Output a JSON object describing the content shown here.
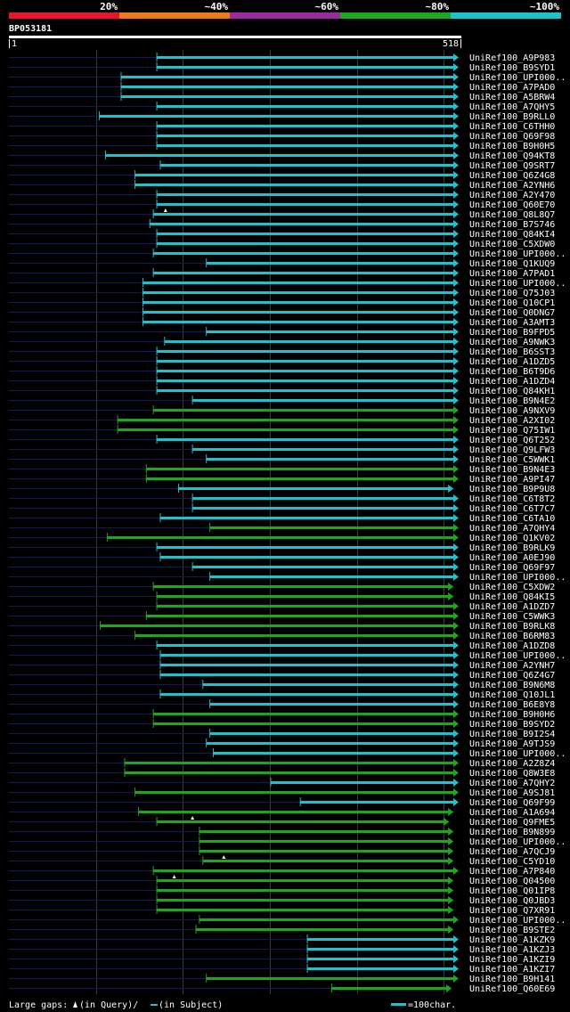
{
  "header": {
    "title": "BP053181",
    "ruler_start": "1",
    "ruler_end": "518",
    "query_length": 518
  },
  "identity_legend": [
    {
      "label": "20%",
      "color": "#e8162c"
    },
    {
      "label": "~40%",
      "color": "#ee7a1e"
    },
    {
      "label": "~60%",
      "color": "#9b2aa0"
    },
    {
      "label": "~80%",
      "color": "#1ea61e"
    },
    {
      "label": "~100%",
      "color": "#1ec2cc"
    }
  ],
  "colors": {
    "query_line": "#12185c",
    "gap_marker": "#ffffa0",
    "grid": "#3a3a3a"
  },
  "hits": [
    {
      "name": "UniRef100_A9P983",
      "start": 171,
      "end": 518,
      "color": "#1ec2cc"
    },
    {
      "name": "UniRef100_B9SYD1",
      "start": 171,
      "end": 518,
      "color": "#1ec2cc"
    },
    {
      "name": "UniRef100_UPI000..",
      "start": 130,
      "end": 518,
      "color": "#1ec2cc"
    },
    {
      "name": "UniRef100_A7PAD0",
      "start": 130,
      "end": 518,
      "color": "#1ec2cc"
    },
    {
      "name": "UniRef100_A5BRW4",
      "start": 130,
      "end": 518,
      "color": "#1ec2cc"
    },
    {
      "name": "UniRef100_A7QHY5",
      "start": 171,
      "end": 518,
      "color": "#1ec2cc"
    },
    {
      "name": "UniRef100_B9RLL0",
      "start": 105,
      "end": 518,
      "color": "#1ec2cc"
    },
    {
      "name": "UniRef100_C6THH0",
      "start": 171,
      "end": 518,
      "color": "#1ec2cc"
    },
    {
      "name": "UniRef100_Q69F98",
      "start": 171,
      "end": 518,
      "color": "#1ec2cc"
    },
    {
      "name": "UniRef100_B9H0H5",
      "start": 171,
      "end": 518,
      "color": "#1ec2cc"
    },
    {
      "name": "UniRef100_Q94KT8",
      "start": 112,
      "end": 518,
      "color": "#1ec2cc"
    },
    {
      "name": "UniRef100_Q9SRT7",
      "start": 175,
      "end": 518,
      "color": "#1ec2cc"
    },
    {
      "name": "UniRef100_Q6Z4G8",
      "start": 146,
      "end": 518,
      "color": "#1ec2cc"
    },
    {
      "name": "UniRef100_A2YNH6",
      "start": 146,
      "end": 518,
      "color": "#1ec2cc"
    },
    {
      "name": "UniRef100_A2Y470",
      "start": 171,
      "end": 518,
      "color": "#1ec2cc"
    },
    {
      "name": "UniRef100_Q60E70",
      "start": 171,
      "end": 518,
      "color": "#1ec2cc"
    },
    {
      "name": "UniRef100_Q8L8Q7",
      "start": 167,
      "end": 518,
      "color": "#1ec2cc",
      "gap": "query",
      "gap_at": 181
    },
    {
      "name": "UniRef100_B7S746",
      "start": 163,
      "end": 518,
      "color": "#1ec2cc"
    },
    {
      "name": "UniRef100_Q84KI4",
      "start": 171,
      "end": 518,
      "color": "#1ec2cc"
    },
    {
      "name": "UniRef100_C5XDW0",
      "start": 171,
      "end": 518,
      "color": "#1ec2cc"
    },
    {
      "name": "UniRef100_UPI000..",
      "start": 167,
      "end": 518,
      "color": "#1ec2cc"
    },
    {
      "name": "UniRef100_Q1KUQ9",
      "start": 228,
      "end": 518,
      "color": "#1ec2cc"
    },
    {
      "name": "UniRef100_A7PAD1",
      "start": 167,
      "end": 518,
      "color": "#1ec2cc"
    },
    {
      "name": "UniRef100_UPI000..",
      "start": 155,
      "end": 518,
      "color": "#1ec2cc"
    },
    {
      "name": "UniRef100_Q75J03",
      "start": 155,
      "end": 518,
      "color": "#1ec2cc"
    },
    {
      "name": "UniRef100_Q10CP1",
      "start": 155,
      "end": 518,
      "color": "#1ec2cc"
    },
    {
      "name": "UniRef100_Q0DNG7",
      "start": 155,
      "end": 518,
      "color": "#1ec2cc"
    },
    {
      "name": "UniRef100_A3AMT3",
      "start": 155,
      "end": 518,
      "color": "#1ec2cc"
    },
    {
      "name": "UniRef100_B9FPD5",
      "start": 228,
      "end": 518,
      "color": "#1ec2cc"
    },
    {
      "name": "UniRef100_A9NWK3",
      "start": 180,
      "end": 518,
      "color": "#1ec2cc"
    },
    {
      "name": "UniRef100_B6SST3",
      "start": 171,
      "end": 518,
      "color": "#1ec2cc"
    },
    {
      "name": "UniRef100_A1DZD5",
      "start": 171,
      "end": 518,
      "color": "#1ec2cc"
    },
    {
      "name": "UniRef100_B6T9D6",
      "start": 171,
      "end": 518,
      "color": "#1ec2cc"
    },
    {
      "name": "UniRef100_A1DZD4",
      "start": 171,
      "end": 518,
      "color": "#1ec2cc"
    },
    {
      "name": "UniRef100_Q84KH1",
      "start": 171,
      "end": 518,
      "color": "#1ec2cc"
    },
    {
      "name": "UniRef100_B9N4E2",
      "start": 212,
      "end": 518,
      "color": "#1ec2cc"
    },
    {
      "name": "UniRef100_A9NXV9",
      "start": 167,
      "end": 518,
      "color": "#1ea61e"
    },
    {
      "name": "UniRef100_A2XI02",
      "start": 126,
      "end": 518,
      "color": "#1ea61e"
    },
    {
      "name": "UniRef100_Q75IW1",
      "start": 126,
      "end": 518,
      "color": "#1ea61e"
    },
    {
      "name": "UniRef100_Q6T252",
      "start": 171,
      "end": 518,
      "color": "#1ec2cc"
    },
    {
      "name": "UniRef100_Q9LFW3",
      "start": 212,
      "end": 518,
      "color": "#1ec2cc"
    },
    {
      "name": "UniRef100_C5WWK1",
      "start": 228,
      "end": 518,
      "color": "#1ec2cc"
    },
    {
      "name": "UniRef100_B9N4E3",
      "start": 159,
      "end": 518,
      "color": "#1ea61e"
    },
    {
      "name": "UniRef100_A9PI47",
      "start": 159,
      "end": 518,
      "color": "#1ea61e"
    },
    {
      "name": "UniRef100_B9P9U8",
      "start": 196,
      "end": 512,
      "color": "#1ec2cc"
    },
    {
      "name": "UniRef100_C6T8T2",
      "start": 212,
      "end": 518,
      "color": "#1ec2cc"
    },
    {
      "name": "UniRef100_C6T7C7",
      "start": 212,
      "end": 518,
      "color": "#1ec2cc"
    },
    {
      "name": "UniRef100_C6TA10",
      "start": 175,
      "end": 518,
      "color": "#1ec2cc"
    },
    {
      "name": "UniRef100_A7QHY4",
      "start": 232,
      "end": 518,
      "color": "#1ea61e"
    },
    {
      "name": "UniRef100_Q1KV02",
      "start": 114,
      "end": 518,
      "color": "#1ea61e"
    },
    {
      "name": "UniRef100_B9RLK9",
      "start": 171,
      "end": 518,
      "color": "#1ec2cc"
    },
    {
      "name": "UniRef100_A0EJ90",
      "start": 175,
      "end": 518,
      "color": "#1ec2cc"
    },
    {
      "name": "UniRef100_Q69F97",
      "start": 212,
      "end": 518,
      "color": "#1ec2cc"
    },
    {
      "name": "UniRef100_UPI000..",
      "start": 232,
      "end": 518,
      "color": "#1ec2cc"
    },
    {
      "name": "UniRef100_C5XDW2",
      "start": 167,
      "end": 512,
      "color": "#1ea61e"
    },
    {
      "name": "UniRef100_Q84KI5",
      "start": 171,
      "end": 512,
      "color": "#1ea61e"
    },
    {
      "name": "UniRef100_A1DZD7",
      "start": 171,
      "end": 518,
      "color": "#1ea61e"
    },
    {
      "name": "UniRef100_C5WWK3",
      "start": 159,
      "end": 518,
      "color": "#1ea61e"
    },
    {
      "name": "UniRef100_B9RLK8",
      "start": 106,
      "end": 518,
      "color": "#1ea61e"
    },
    {
      "name": "UniRef100_B6RM83",
      "start": 146,
      "end": 518,
      "color": "#1ea61e"
    },
    {
      "name": "UniRef100_A1DZD8",
      "start": 171,
      "end": 518,
      "color": "#1ec2cc"
    },
    {
      "name": "UniRef100_UPI000..",
      "start": 175,
      "end": 518,
      "color": "#1ec2cc"
    },
    {
      "name": "UniRef100_A2YNH7",
      "start": 175,
      "end": 518,
      "color": "#1ec2cc"
    },
    {
      "name": "UniRef100_Q6Z4G7",
      "start": 175,
      "end": 518,
      "color": "#1ec2cc"
    },
    {
      "name": "UniRef100_B9N6M8",
      "start": 224,
      "end": 518,
      "color": "#1ec2cc"
    },
    {
      "name": "UniRef100_Q10JL1",
      "start": 175,
      "end": 518,
      "color": "#1ec2cc"
    },
    {
      "name": "UniRef100_B6E8Y8",
      "start": 232,
      "end": 518,
      "color": "#1ec2cc"
    },
    {
      "name": "UniRef100_B9H0H6",
      "start": 167,
      "end": 518,
      "color": "#1ea61e"
    },
    {
      "name": "UniRef100_B9SYD2",
      "start": 167,
      "end": 518,
      "color": "#1ea61e"
    },
    {
      "name": "UniRef100_B9I2S4",
      "start": 232,
      "end": 518,
      "color": "#1ec2cc"
    },
    {
      "name": "UniRef100_A9TJS9",
      "start": 228,
      "end": 518,
      "color": "#1ec2cc"
    },
    {
      "name": "UniRef100_UPI000..",
      "start": 236,
      "end": 518,
      "color": "#1ec2cc"
    },
    {
      "name": "UniRef100_A2Z8Z4",
      "start": 134,
      "end": 518,
      "color": "#1ea61e"
    },
    {
      "name": "UniRef100_Q8W3E8",
      "start": 134,
      "end": 518,
      "color": "#1ea61e"
    },
    {
      "name": "UniRef100_A7QHY2",
      "start": 302,
      "end": 518,
      "color": "#1ec2cc"
    },
    {
      "name": "UniRef100_A9SJ81",
      "start": 146,
      "end": 518,
      "color": "#1ea61e"
    },
    {
      "name": "UniRef100_Q69F99",
      "start": 336,
      "end": 518,
      "color": "#1ec2cc"
    },
    {
      "name": "UniRef100_A1A694",
      "start": 150,
      "end": 512,
      "color": "#1ea61e"
    },
    {
      "name": "UniRef100_Q9FME5",
      "start": 171,
      "end": 507,
      "color": "#1ea61e",
      "gap": "query",
      "gap_at": 212
    },
    {
      "name": "UniRef100_B9N899",
      "start": 220,
      "end": 512,
      "color": "#1ea61e"
    },
    {
      "name": "UniRef100_UPI000..",
      "start": 220,
      "end": 512,
      "color": "#1ea61e"
    },
    {
      "name": "UniRef100_A7QCJ9",
      "start": 220,
      "end": 512,
      "color": "#1ea61e"
    },
    {
      "name": "UniRef100_C5YD10",
      "start": 224,
      "end": 512,
      "color": "#1ea61e",
      "gap": "query",
      "gap_at": 248
    },
    {
      "name": "UniRef100_A7P840",
      "start": 167,
      "end": 518,
      "color": "#1ea61e"
    },
    {
      "name": "UniRef100_Q04500",
      "start": 171,
      "end": 512,
      "color": "#1ea61e",
      "gap": "query",
      "gap_at": 191
    },
    {
      "name": "UniRef100_Q01IP8",
      "start": 171,
      "end": 512,
      "color": "#1ea61e"
    },
    {
      "name": "UniRef100_Q0JBD3",
      "start": 171,
      "end": 512,
      "color": "#1ea61e"
    },
    {
      "name": "UniRef100_Q7XR91",
      "start": 171,
      "end": 512,
      "color": "#1ea61e"
    },
    {
      "name": "UniRef100_UPI000..",
      "start": 220,
      "end": 518,
      "color": "#1ea61e"
    },
    {
      "name": "UniRef100_B9STE2",
      "start": 216,
      "end": 512,
      "color": "#1ea61e"
    },
    {
      "name": "UniRef100_A1KZK9",
      "start": 344,
      "end": 518,
      "color": "#1ec2cc"
    },
    {
      "name": "UniRef100_A1KZJ3",
      "start": 344,
      "end": 518,
      "color": "#1ec2cc"
    },
    {
      "name": "UniRef100_A1KZI9",
      "start": 344,
      "end": 518,
      "color": "#1ec2cc"
    },
    {
      "name": "UniRef100_A1KZI7",
      "start": 344,
      "end": 518,
      "color": "#1ec2cc"
    },
    {
      "name": "UniRef100_B9H141",
      "start": 228,
      "end": 518,
      "color": "#1ea61e"
    },
    {
      "name": "UniRef100_Q60E69",
      "start": 372,
      "end": 510,
      "color": "#1ea61e"
    }
  ],
  "footer": {
    "gaps_label": "Large gaps:",
    "in_query": "(in Query)/",
    "in_subject": "(in Subject)",
    "scale_label": "=100char."
  }
}
